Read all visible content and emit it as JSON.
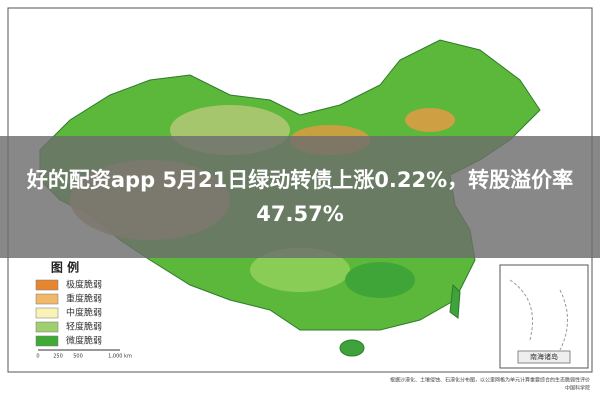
{
  "banner": {
    "title": "好的配资app 5月21日绿动转债上涨0.22%，转股溢价率47.57%"
  },
  "legend": {
    "title": "图 例",
    "items": [
      "极度脆弱",
      "重度脆弱",
      "中度脆弱",
      "轻度脆弱",
      "微度脆弱"
    ]
  },
  "scale_bar": {
    "labels": [
      "0",
      "250",
      "500",
      "1,000 km"
    ]
  },
  "inset": {
    "label": "南海诸岛"
  },
  "footnote": [
    "根据沙漠化、土壤侵蚀、石漠化分布图，以公里网格为单元计算重要综合的生态脆弱性评价",
    "中国科学院"
  ]
}
